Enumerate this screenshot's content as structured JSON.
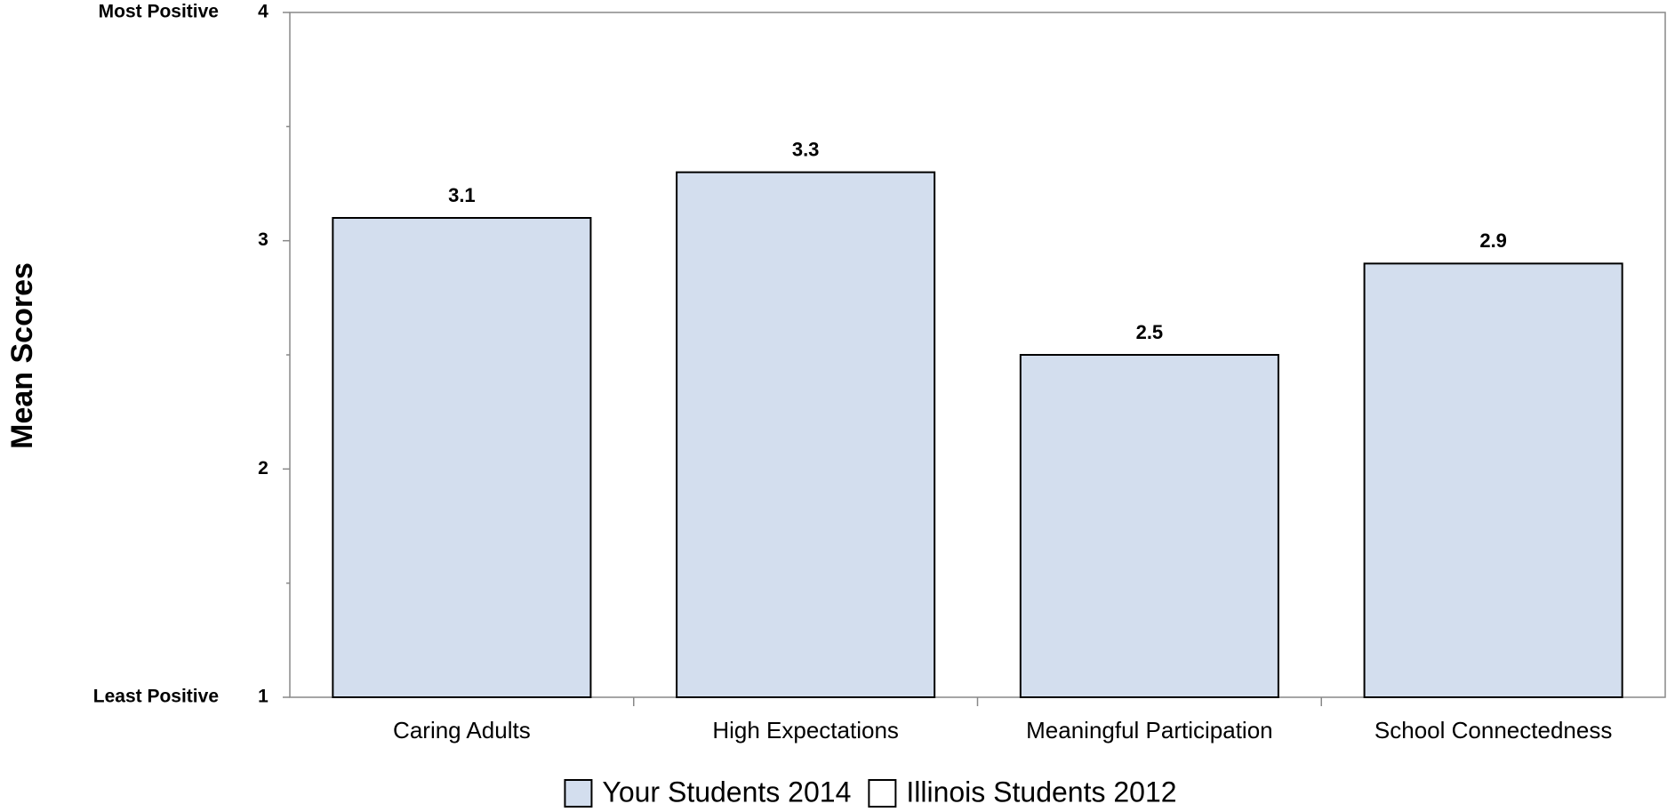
{
  "chart_data": {
    "type": "bar",
    "y_label": "Mean Scores",
    "y_annotations": [
      {
        "value": 4,
        "label": "Most Positive"
      },
      {
        "value": 1,
        "label": "Least Positive"
      }
    ],
    "categories": [
      "Caring Adults",
      "High Expectations",
      "Meaningful Participation",
      "School Connectedness"
    ],
    "series": [
      {
        "name": "Your Students 2014",
        "color": "#d3deee",
        "values": [
          3.1,
          3.3,
          2.5,
          2.9
        ]
      },
      {
        "name": "Illinois Students 2012",
        "color": "#ffffff",
        "values": [
          null,
          null,
          null,
          null
        ]
      }
    ],
    "ylim": [
      1,
      4
    ],
    "yticks": [
      1,
      2,
      3,
      4
    ],
    "yminor_ticks": [
      1.5,
      2.5,
      3.5
    ],
    "grid": false,
    "legend": "bottom"
  }
}
